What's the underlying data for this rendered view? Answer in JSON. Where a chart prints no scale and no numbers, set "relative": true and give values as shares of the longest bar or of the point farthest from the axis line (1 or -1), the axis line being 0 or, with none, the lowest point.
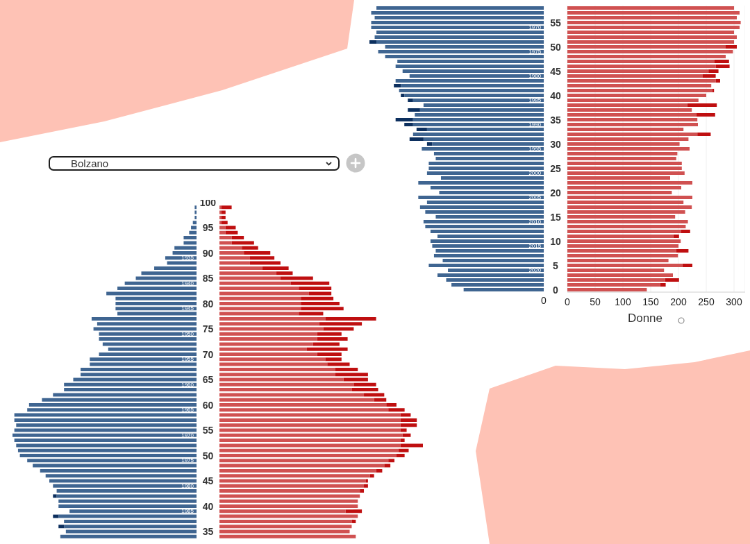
{
  "chart_data": [
    {
      "type": "bar",
      "orientation": "horizontal",
      "stacked": true,
      "relative": true,
      "title": "Bolzano",
      "categories": [
        null,
        null,
        null,
        null,
        null,
        null,
        null,
        null,
        null,
        null,
        null,
        "1935",
        null,
        null,
        null,
        null,
        "1940",
        null,
        null,
        null,
        null,
        "1945",
        null,
        null,
        null,
        null,
        "1950",
        null,
        null,
        null,
        null,
        "1955",
        null,
        null,
        null,
        null,
        "1960",
        null,
        null,
        null,
        null,
        "1965",
        null,
        null,
        null,
        null,
        "1970",
        null,
        null,
        null,
        null,
        "1975",
        null,
        null,
        null,
        null,
        "1980",
        null,
        null,
        null,
        null,
        "1985",
        null,
        null,
        null,
        null,
        null
      ],
      "series": [
        {
          "color": "#3f6591",
          "values": [
            null,
            -0.01,
            -0.01,
            -0.01,
            -0.02,
            -0.03,
            -0.04,
            -0.07,
            -0.07,
            -0.12,
            -0.13,
            -0.17,
            -0.16,
            -0.23,
            -0.3,
            -0.33,
            -0.39,
            -0.43,
            -0.49,
            -0.44,
            -0.44,
            -0.44,
            -0.43,
            -0.57,
            -0.54,
            -0.56,
            -0.53,
            -0.53,
            -0.51,
            -0.48,
            -0.53,
            -0.58,
            -0.58,
            -0.63,
            -0.63,
            -0.67,
            -0.72,
            -0.72,
            -0.78,
            -0.84,
            -0.91,
            -0.92,
            -0.99,
            -0.99,
            -0.98,
            -0.99,
            -1,
            -0.99,
            -0.98,
            -0.97,
            -0.96,
            -0.92,
            -0.89,
            -0.85,
            -0.82,
            -0.8,
            -0.78,
            -0.76,
            -0.76,
            -0.75,
            -0.75,
            -0.69,
            -0.75,
            -0.72,
            -0.72,
            -0.71,
            -0.74
          ]
        },
        {
          "color": "#0c2f5e",
          "values": [
            null,
            null,
            null,
            null,
            null,
            null,
            null,
            null,
            null,
            null,
            null,
            null,
            null,
            null,
            null,
            null,
            null,
            null,
            null,
            null,
            null,
            null,
            null,
            null,
            null,
            null,
            null,
            null,
            null,
            null,
            null,
            null,
            null,
            null,
            null,
            null,
            null,
            null,
            null,
            null,
            null,
            null,
            null,
            null,
            null,
            null,
            null,
            null,
            null,
            null,
            null,
            null,
            null,
            null,
            null,
            null,
            null,
            null,
            -0.02,
            null,
            null,
            null,
            -0.03,
            null,
            -0.03,
            null,
            null
          ]
        }
      ]
    },
    {
      "type": "bar",
      "orientation": "horizontal",
      "stacked": true,
      "relative": true,
      "categories": [
        "100",
        null,
        null,
        null,
        null,
        "95",
        null,
        null,
        null,
        null,
        "90",
        null,
        null,
        null,
        null,
        "85",
        null,
        null,
        null,
        null,
        "80",
        null,
        null,
        null,
        null,
        "75",
        null,
        null,
        null,
        null,
        "70",
        null,
        null,
        null,
        null,
        "65",
        null,
        null,
        null,
        null,
        "60",
        null,
        null,
        null,
        null,
        "55",
        null,
        null,
        null,
        null,
        "50",
        null,
        null,
        null,
        null,
        "45",
        null,
        null,
        null,
        null,
        "40",
        null,
        null,
        null,
        null,
        "35",
        null
      ],
      "series": [
        {
          "color": "#d05151",
          "values": [
            null,
            0.01,
            0.01,
            0.01,
            0.01,
            0.03,
            0.03,
            0.06,
            0.06,
            0.11,
            0.12,
            0.15,
            0.15,
            0.21,
            0.28,
            0.3,
            0.35,
            0.39,
            0.44,
            0.4,
            0.4,
            0.4,
            0.39,
            0.52,
            0.49,
            0.51,
            0.48,
            0.48,
            0.46,
            0.43,
            0.48,
            0.52,
            0.53,
            0.57,
            0.57,
            0.61,
            0.66,
            0.65,
            0.71,
            0.76,
            0.82,
            0.83,
            0.89,
            0.89,
            0.89,
            0.89,
            0.9,
            0.89,
            0.89,
            0.88,
            0.87,
            0.83,
            0.81,
            0.77,
            0.74,
            0.72,
            0.71,
            0.69,
            0.69,
            0.68,
            0.68,
            0.62,
            0.68,
            0.65,
            0.65,
            0.64,
            0.67
          ]
        },
        {
          "color": "#bf0f10",
          "values": [
            null,
            0.05,
            0.02,
            0.02,
            0.03,
            0.05,
            0.06,
            0.06,
            0.11,
            0.08,
            0.13,
            0.12,
            0.15,
            0.13,
            0.08,
            0.16,
            0.19,
            0.16,
            0.11,
            0.16,
            0.19,
            0.21,
            0.12,
            0.25,
            0.21,
            0.15,
            0.12,
            0.15,
            0.13,
            0.2,
            0.12,
            0.08,
            0.11,
            0.11,
            0.16,
            0.12,
            0.11,
            0.13,
            0.1,
            0.06,
            0.05,
            0.08,
            0.05,
            0.08,
            0.08,
            0.03,
            0.04,
            0.02,
            0.11,
            0.05,
            0.04,
            0.03,
            0.03,
            0.03,
            0.02,
            0.01,
            0.02,
            0.02,
            null,
            null,
            null,
            0.08,
            null,
            0.02,
            null,
            null,
            null
          ]
        }
      ]
    },
    {
      "type": "bar",
      "orientation": "horizontal",
      "stacked": true,
      "relative": true,
      "annotations": [
        "0"
      ],
      "categories": [
        null,
        null,
        null,
        null,
        "1970",
        null,
        null,
        null,
        null,
        "1975",
        null,
        null,
        null,
        null,
        "1980",
        null,
        null,
        null,
        null,
        "1985",
        null,
        null,
        null,
        null,
        "1990",
        null,
        null,
        null,
        null,
        "1995",
        null,
        null,
        null,
        null,
        "2000",
        null,
        null,
        null,
        null,
        "2005",
        null,
        null,
        null,
        null,
        "2010",
        null,
        null,
        null,
        null,
        "2015",
        null,
        null,
        null,
        null,
        "2020",
        null,
        null,
        null,
        null
      ],
      "series": [
        {
          "color": "#3f6591",
          "values": [
            -0.96,
            -0.99,
            -0.97,
            -0.99,
            -0.99,
            -0.96,
            -0.97,
            -0.96,
            -0.91,
            -0.95,
            -0.91,
            -0.84,
            -0.85,
            -0.81,
            -0.77,
            -0.85,
            -0.82,
            -0.83,
            -0.8,
            -0.75,
            -0.69,
            -0.71,
            -0.74,
            -0.75,
            -0.75,
            -0.67,
            -0.75,
            -0.69,
            -0.64,
            -0.7,
            -0.63,
            -0.62,
            -0.66,
            -0.66,
            -0.67,
            -0.59,
            -0.72,
            -0.65,
            -0.6,
            -0.72,
            -0.67,
            -0.71,
            -0.68,
            -0.62,
            -0.69,
            -0.68,
            -0.65,
            -0.61,
            -0.65,
            -0.64,
            -0.62,
            -0.63,
            -0.58,
            -0.66,
            -0.55,
            -0.61,
            -0.56,
            -0.53,
            -0.46
          ]
        },
        {
          "color": "#0c2f5e",
          "values": [
            null,
            null,
            null,
            null,
            null,
            null,
            null,
            -0.04,
            null,
            null,
            null,
            null,
            null,
            null,
            null,
            null,
            -0.04,
            null,
            -0.02,
            -0.03,
            null,
            -0.07,
            null,
            -0.1,
            -0.05,
            -0.06,
            null,
            -0.08,
            -0.03,
            null,
            null,
            null,
            null,
            null,
            null,
            null,
            null,
            null,
            null,
            null,
            null,
            null,
            null,
            null,
            null,
            null,
            null,
            null,
            null,
            null,
            null,
            null,
            null,
            null,
            null,
            null,
            null,
            null,
            null
          ]
        }
      ]
    },
    {
      "type": "bar",
      "orientation": "horizontal",
      "stacked": true,
      "xlim": [
        0,
        320
      ],
      "xticks": [
        0,
        50,
        100,
        150,
        200,
        250,
        300
      ],
      "grid": "x",
      "xlabel": "Donne",
      "categories": [
        null,
        null,
        null,
        "55",
        null,
        null,
        null,
        null,
        "50",
        null,
        null,
        null,
        null,
        "45",
        null,
        null,
        null,
        null,
        "40",
        null,
        null,
        null,
        null,
        "35",
        null,
        null,
        null,
        null,
        "30",
        null,
        null,
        null,
        null,
        "25",
        null,
        null,
        null,
        null,
        "20",
        null,
        null,
        null,
        null,
        "15",
        null,
        null,
        null,
        null,
        "10",
        null,
        null,
        null,
        null,
        "5",
        null,
        null,
        null,
        null,
        "0"
      ],
      "series": [
        {
          "color": "#d05151",
          "values": [
            300,
            310,
            305,
            312,
            310,
            300,
            305,
            300,
            285,
            298,
            285,
            265,
            267,
            254,
            243,
            267,
            259,
            261,
            250,
            236,
            216,
            224,
            232,
            234,
            235,
            209,
            234,
            218,
            202,
            220,
            198,
            196,
            206,
            206,
            211,
            185,
            225,
            205,
            188,
            225,
            209,
            224,
            212,
            194,
            217,
            213,
            205,
            191,
            204,
            200,
            196,
            199,
            182,
            207,
            174,
            190,
            176,
            167,
            143
          ]
        },
        {
          "color": "#bf0f10",
          "values": [
            null,
            null,
            null,
            null,
            null,
            null,
            null,
            null,
            20,
            null,
            null,
            26,
            25,
            18,
            24,
            8,
            null,
            3,
            null,
            null,
            53,
            null,
            34,
            null,
            null,
            null,
            24,
            null,
            null,
            null,
            null,
            null,
            null,
            null,
            null,
            null,
            null,
            null,
            null,
            null,
            null,
            null,
            null,
            null,
            null,
            null,
            16,
            10,
            null,
            null,
            22,
            null,
            null,
            18,
            null,
            null,
            25,
            10,
            null
          ]
        }
      ]
    }
  ]
}
